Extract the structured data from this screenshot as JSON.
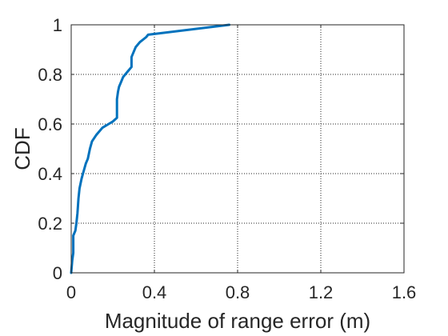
{
  "chart_data": {
    "type": "line",
    "title": "",
    "xlabel": "Magnitude of range error (m)",
    "ylabel": "CDF",
    "xlim": [
      0,
      1.6
    ],
    "ylim": [
      0,
      1
    ],
    "xticks": [
      0,
      0.4,
      0.8,
      1.2,
      1.6
    ],
    "xtick_labels": [
      "0",
      "0.4",
      "0.8",
      "1.2",
      "1.6"
    ],
    "yticks": [
      0,
      0.2,
      0.4,
      0.6,
      0.8,
      1
    ],
    "ytick_labels": [
      "0",
      "0.2",
      "0.4",
      "0.6",
      "0.8",
      "1"
    ],
    "grid": true,
    "grid_style": "dotted",
    "line_color": "#0072BD",
    "series": [
      {
        "x": [
          0.0,
          0.005,
          0.01,
          0.01,
          0.02,
          0.025,
          0.03,
          0.035,
          0.04,
          0.05,
          0.06,
          0.07,
          0.08,
          0.09,
          0.1,
          0.12,
          0.15,
          0.18,
          0.2,
          0.22,
          0.22,
          0.225,
          0.23,
          0.24,
          0.25,
          0.27,
          0.29,
          0.29,
          0.3,
          0.31,
          0.33,
          0.36,
          0.37,
          0.76
        ],
        "y": [
          0.0,
          0.05,
          0.08,
          0.15,
          0.17,
          0.2,
          0.24,
          0.3,
          0.34,
          0.38,
          0.41,
          0.44,
          0.46,
          0.5,
          0.53,
          0.555,
          0.585,
          0.6,
          0.61,
          0.625,
          0.7,
          0.73,
          0.75,
          0.77,
          0.79,
          0.81,
          0.83,
          0.87,
          0.89,
          0.91,
          0.93,
          0.95,
          0.96,
          1.0
        ]
      }
    ]
  }
}
